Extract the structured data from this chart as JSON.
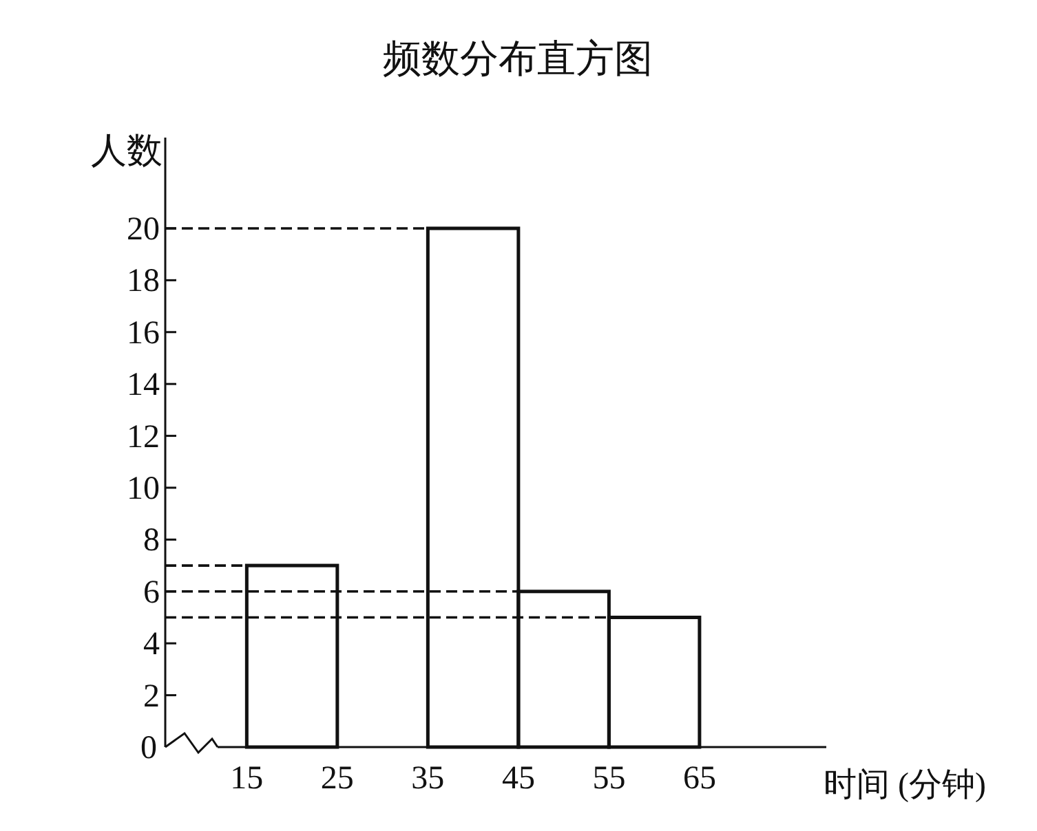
{
  "chart_data": {
    "type": "histogram",
    "title": "频数分布直方图",
    "xlabel": "时间 (分钟)",
    "ylabel": "人数",
    "bins": [
      15,
      25,
      35,
      45,
      55,
      65
    ],
    "values": [
      7,
      0,
      20,
      6,
      5
    ],
    "xlim": [
      6,
      79
    ],
    "ylim": [
      0,
      23.5
    ],
    "xticks": [
      15,
      25,
      35,
      45,
      55,
      65
    ],
    "yticks": [
      0,
      2,
      4,
      6,
      8,
      10,
      12,
      14,
      16,
      18,
      20
    ],
    "ref_lines": [
      {
        "axis": "y",
        "value": 20,
        "line_style": "dashed"
      },
      {
        "axis": "y",
        "value": 7,
        "line_style": "dashed"
      },
      {
        "axis": "y",
        "value": 6,
        "line_style": "dashed"
      },
      {
        "axis": "y",
        "value": 5,
        "line_style": "dashed"
      }
    ],
    "grid": false
  }
}
